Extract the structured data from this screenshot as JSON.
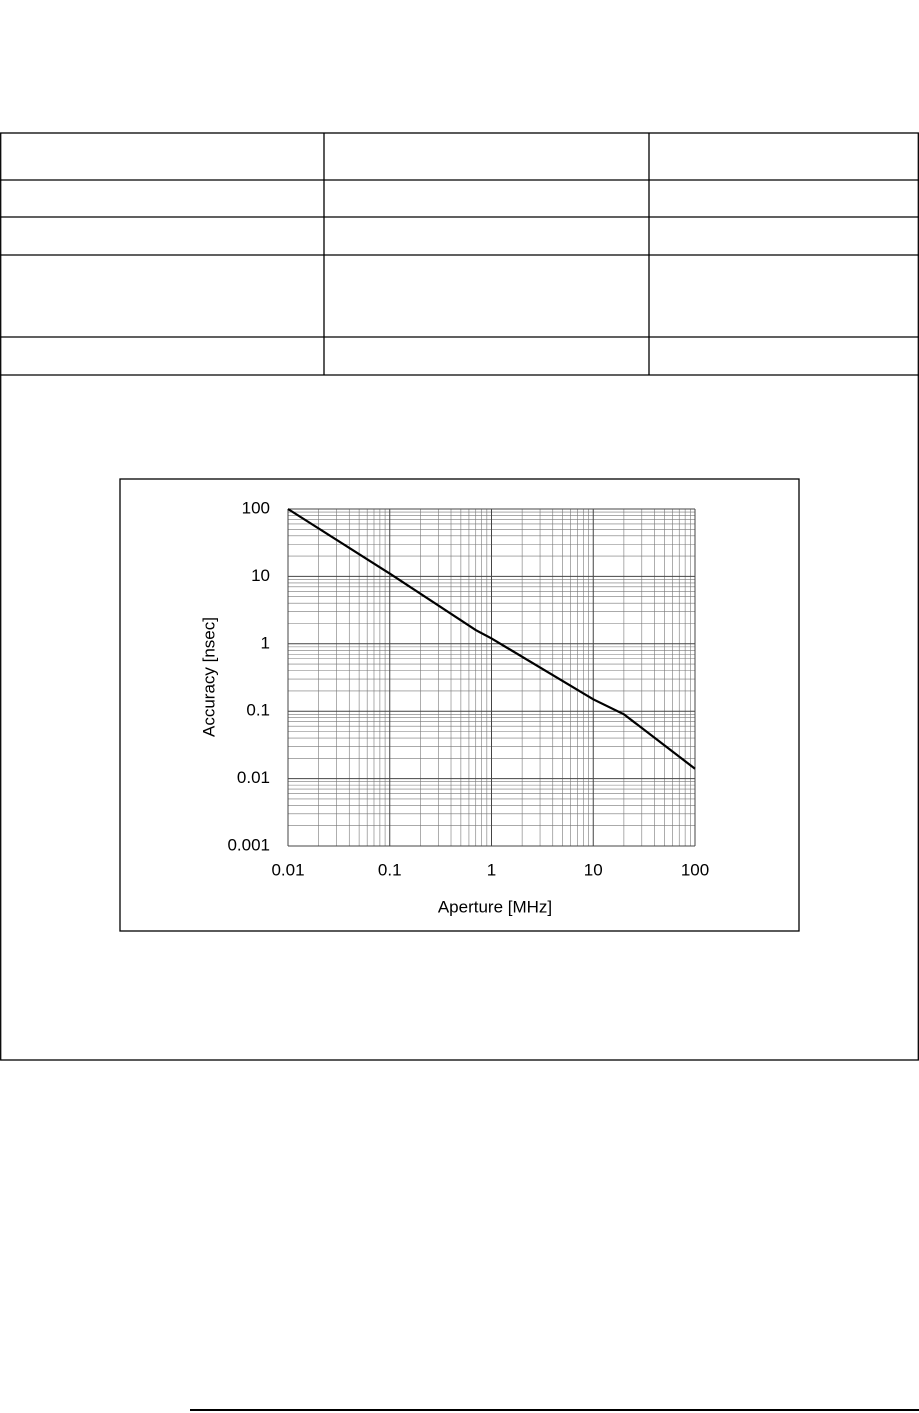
{
  "chart_data": {
    "type": "line",
    "x_label": "Aperture [MHz]",
    "y_label": "Accuracy [nsec]",
    "x": [
      0.01,
      0.1,
      0.7,
      1,
      10,
      20,
      100
    ],
    "series": [
      {
        "color": "#000000",
        "values": [
          100,
          11,
          1.6,
          1.2,
          0.15,
          0.09,
          0.014
        ]
      }
    ],
    "xlim": [
      0.01,
      100
    ],
    "ylim": [
      0.001,
      100
    ],
    "xticks": [
      0.01,
      0.1,
      1,
      10,
      100
    ],
    "yticks": [
      0.001,
      0.01,
      0.1,
      1,
      10,
      100
    ],
    "xscale": "log",
    "yscale": "log",
    "grid": true
  }
}
